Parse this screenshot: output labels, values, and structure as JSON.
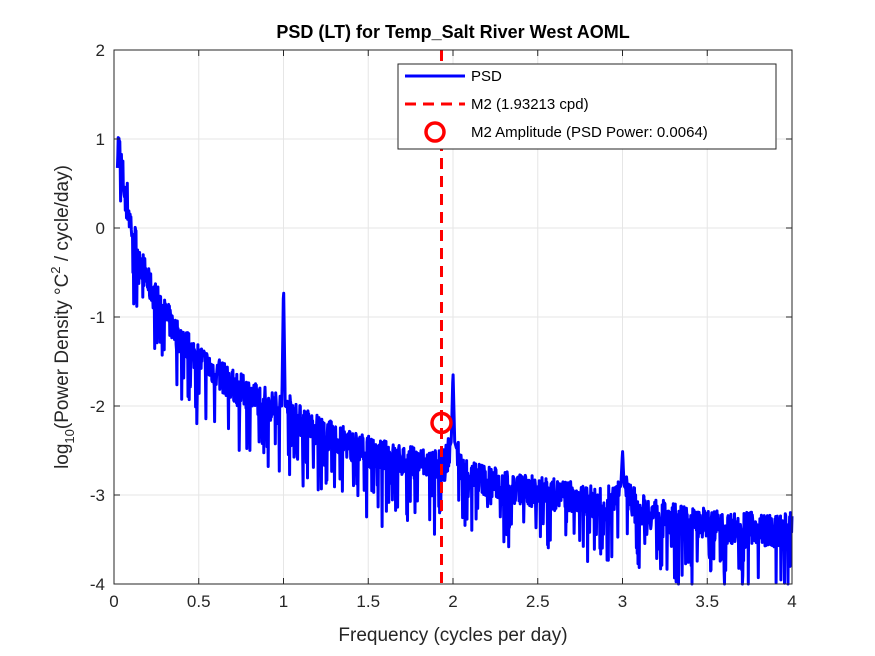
{
  "chart_data": {
    "type": "line",
    "title": "PSD (LT) for Temp_Salt River West AOML",
    "xlabel": "Frequency (cycles per day)",
    "ylabel": {
      "prefix": "log",
      "subscript": "10",
      "middle": "(Power Density °C",
      "superscript": "2",
      "suffix": " / cycle/day)"
    },
    "xlim": [
      0,
      4
    ],
    "ylim": [
      -4,
      2
    ],
    "xticks": [
      0,
      0.5,
      1,
      1.5,
      2,
      2.5,
      3,
      3.5,
      4
    ],
    "xtick_labels": [
      "0",
      "0.5",
      "1",
      "1.5",
      "2",
      "2.5",
      "3",
      "3.5",
      "4"
    ],
    "yticks": [
      -4,
      -3,
      -2,
      -1,
      0,
      1,
      2
    ],
    "ytick_labels": [
      "-4",
      "-3",
      "-2",
      "-1",
      "0",
      "1",
      "2"
    ],
    "grid": true,
    "legend_position": "top-right",
    "series": [
      {
        "name": "PSD",
        "color": "#0000ff",
        "x": [
          0.02,
          0.03,
          0.05,
          0.08,
          0.1,
          0.15,
          0.2,
          0.3,
          0.4,
          0.5,
          0.6,
          0.7,
          0.8,
          0.9,
          0.95,
          0.99,
          1.0,
          1.01,
          1.05,
          1.1,
          1.2,
          1.3,
          1.4,
          1.5,
          1.6,
          1.7,
          1.8,
          1.9,
          1.95,
          1.99,
          2.0,
          2.01,
          2.05,
          2.1,
          2.2,
          2.3,
          2.4,
          2.5,
          2.6,
          2.7,
          2.8,
          2.9,
          2.99,
          3.0,
          3.01,
          3.1,
          3.2,
          3.3,
          3.4,
          3.5,
          3.6,
          3.7,
          3.8,
          3.9,
          4.0
        ],
        "y": [
          0.95,
          0.9,
          0.6,
          0.3,
          0.05,
          -0.3,
          -0.6,
          -0.95,
          -1.25,
          -1.45,
          -1.6,
          -1.75,
          -1.85,
          -1.95,
          -2.0,
          -2.0,
          -0.6,
          -2.0,
          -2.05,
          -2.15,
          -2.25,
          -2.35,
          -2.42,
          -2.5,
          -2.55,
          -2.6,
          -2.62,
          -2.65,
          -2.65,
          -2.4,
          -1.6,
          -2.4,
          -2.7,
          -2.75,
          -2.82,
          -2.88,
          -2.92,
          -2.95,
          -2.98,
          -3.0,
          -3.05,
          -3.1,
          -2.9,
          -2.5,
          -2.9,
          -3.15,
          -3.2,
          -3.25,
          -3.3,
          -3.3,
          -3.35,
          -3.35,
          -3.35,
          -3.4,
          -3.35
        ]
      },
      {
        "name": "M2 (1.93213 cpd)",
        "color": "#ff0000",
        "x": [
          1.93213,
          1.93213
        ],
        "y": [
          -4,
          2
        ]
      },
      {
        "name": "M2 Amplitude (PSD Power: 0.0064)",
        "color": "#ff0000",
        "x": [
          1.93213
        ],
        "y": [
          -2.19
        ]
      }
    ]
  }
}
